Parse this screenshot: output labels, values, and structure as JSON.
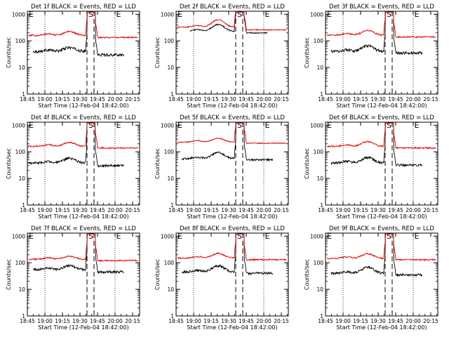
{
  "page": {
    "background": "#ffffff",
    "colors": {
      "events": "#000000",
      "lld": "#e00000",
      "axes": "#000000"
    }
  },
  "axes_common": {
    "x_ticks": [
      "18:45",
      "19:00",
      "19:15",
      "19:30",
      "19:45",
      "20:00",
      "20:15"
    ],
    "x_tick_hours": [
      18.75,
      19.0,
      19.25,
      19.5,
      19.75,
      20.0,
      20.25
    ],
    "xlim_hours": [
      18.75,
      20.35
    ],
    "y_ticks": [
      "1",
      "10",
      "100",
      "1000"
    ],
    "y_tick_values": [
      1,
      10,
      100,
      1000
    ],
    "ylim": [
      1,
      1300
    ],
    "y_scale": "log",
    "ylabel": "Counts/sec",
    "xlabel": "Start Time (12-Feb-04 18:42:00)",
    "markers": {
      "start_label": "S",
      "end_label": "E"
    },
    "dashed_lines_hours": [
      19.6,
      19.7
    ],
    "dotted_lines_hours": [
      19.0,
      20.0
    ]
  },
  "chart_data": [
    {
      "type": "line",
      "title": "Det 1f BLACK = Events, RED = LLD",
      "x_range_hours": [
        18.82,
        20.32
      ],
      "series": [
        {
          "name": "Events",
          "color": "#000000",
          "base": 40,
          "bump_pct": 40,
          "dip": 30,
          "noise": 0.12,
          "x_start_hours": 18.83,
          "x_end_hours": 20.13
        },
        {
          "name": "LLD",
          "color": "#e00000",
          "base": 160,
          "bump_pct": 40,
          "dip": 135,
          "noise": 0.06,
          "x_start_hours": 18.77,
          "x_end_hours": 20.33
        }
      ],
      "peak_value": 1000
    },
    {
      "type": "line",
      "title": "Det 2f BLACK = Events, RED = LLD",
      "x_range_hours": [
        18.82,
        20.32
      ],
      "series": [
        {
          "name": "Events",
          "color": "#000000",
          "base": 230,
          "bump_pct": 80,
          "dip": 200,
          "noise": 0.05,
          "x_start_hours": 18.95,
          "x_end_hours": 20.05
        },
        {
          "name": "LLD",
          "color": "#e00000",
          "base": 330,
          "bump_pct": 90,
          "dip": 260,
          "noise": 0.05,
          "x_start_hours": 18.77,
          "x_end_hours": 20.33
        }
      ],
      "peak_value": 1000
    },
    {
      "type": "line",
      "title": "Det 3f BLACK = Events, RED = LLD",
      "x_range_hours": [
        18.82,
        20.32
      ],
      "series": [
        {
          "name": "Events",
          "color": "#000000",
          "base": 40,
          "bump_pct": 60,
          "dip": 35,
          "noise": 0.12,
          "x_start_hours": 18.83,
          "x_end_hours": 20.13
        },
        {
          "name": "LLD",
          "color": "#e00000",
          "base": 165,
          "bump_pct": 50,
          "dip": 140,
          "noise": 0.06,
          "x_start_hours": 18.77,
          "x_end_hours": 20.33
        }
      ],
      "peak_value": 1000
    },
    {
      "type": "line",
      "title": "Det 4f BLACK = Events, RED = LLD",
      "x_range_hours": [
        18.82,
        20.32
      ],
      "series": [
        {
          "name": "Events",
          "color": "#000000",
          "base": 38,
          "bump_pct": 50,
          "dip": 30,
          "noise": 0.1,
          "x_start_hours": 18.76,
          "x_end_hours": 20.13
        },
        {
          "name": "LLD",
          "color": "#e00000",
          "base": 160,
          "bump_pct": 40,
          "dip": 140,
          "noise": 0.06,
          "x_start_hours": 18.76,
          "x_end_hours": 20.33
        }
      ],
      "peak_value": 1000
    },
    {
      "type": "line",
      "title": "Det 5f BLACK = Events, RED = LLD",
      "x_range_hours": [
        18.82,
        20.32
      ],
      "series": [
        {
          "name": "Events",
          "color": "#000000",
          "base": 55,
          "bump_pct": 70,
          "dip": 50,
          "noise": 0.08,
          "x_start_hours": 18.83,
          "x_end_hours": 20.13
        },
        {
          "name": "LLD",
          "color": "#e00000",
          "base": 230,
          "bump_pct": 40,
          "dip": 210,
          "noise": 0.04,
          "x_start_hours": 18.77,
          "x_end_hours": 20.33
        }
      ],
      "peak_value": 1000
    },
    {
      "type": "line",
      "title": "Det 6f BLACK = Events, RED = LLD",
      "x_range_hours": [
        18.82,
        20.32
      ],
      "series": [
        {
          "name": "Events",
          "color": "#000000",
          "base": 38,
          "bump_pct": 60,
          "dip": 32,
          "noise": 0.1,
          "x_start_hours": 18.83,
          "x_end_hours": 20.13
        },
        {
          "name": "LLD",
          "color": "#e00000",
          "base": 160,
          "bump_pct": 50,
          "dip": 140,
          "noise": 0.06,
          "x_start_hours": 18.77,
          "x_end_hours": 20.33
        }
      ],
      "peak_value": 1000
    },
    {
      "type": "line",
      "title": "Det 7f BLACK = Events, RED = LLD",
      "x_range_hours": [
        18.82,
        20.32
      ],
      "series": [
        {
          "name": "Events",
          "color": "#000000",
          "base": 55,
          "bump_pct": 40,
          "dip": 45,
          "noise": 0.1,
          "x_start_hours": 18.83,
          "x_end_hours": 20.13
        },
        {
          "name": "LLD",
          "color": "#e00000",
          "base": 135,
          "bump_pct": 30,
          "dip": 120,
          "noise": 0.06,
          "x_start_hours": 18.77,
          "x_end_hours": 20.33
        }
      ],
      "peak_value": 1000
    },
    {
      "type": "line",
      "title": "Det 8f BLACK = Events, RED = LLD",
      "x_range_hours": [
        18.82,
        20.32
      ],
      "series": [
        {
          "name": "Events",
          "color": "#000000",
          "base": 45,
          "bump_pct": 70,
          "dip": 40,
          "noise": 0.1,
          "x_start_hours": 18.83,
          "x_end_hours": 20.13
        },
        {
          "name": "LLD",
          "color": "#e00000",
          "base": 150,
          "bump_pct": 50,
          "dip": 130,
          "noise": 0.06,
          "x_start_hours": 18.77,
          "x_end_hours": 20.33
        }
      ],
      "peak_value": 1000
    },
    {
      "type": "line",
      "title": "Det 9f BLACK = Events, RED = LLD",
      "x_range_hours": [
        18.82,
        20.32
      ],
      "series": [
        {
          "name": "Events",
          "color": "#000000",
          "base": 40,
          "bump_pct": 70,
          "dip": 35,
          "noise": 0.1,
          "x_start_hours": 18.83,
          "x_end_hours": 20.13
        },
        {
          "name": "LLD",
          "color": "#e00000",
          "base": 145,
          "bump_pct": 50,
          "dip": 130,
          "noise": 0.06,
          "x_start_hours": 18.77,
          "x_end_hours": 20.33
        }
      ],
      "peak_value": 1000
    }
  ]
}
